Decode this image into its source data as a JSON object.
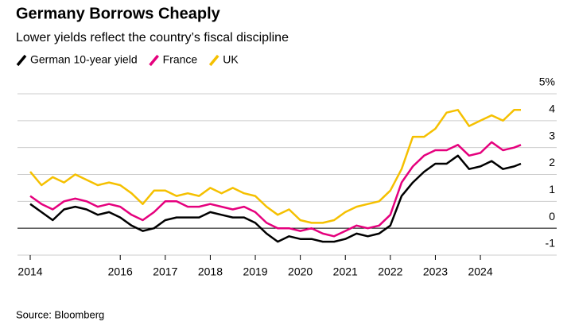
{
  "chart_data": {
    "type": "line",
    "title": "Germany Borrows Cheaply",
    "subtitle": "Lower yields reflect the country’s fiscal discipline",
    "source": "Source: Bloomberg",
    "x": [
      2014,
      2014.25,
      2014.5,
      2014.75,
      2015,
      2015.25,
      2015.5,
      2015.75,
      2016,
      2016.25,
      2016.5,
      2016.75,
      2017,
      2017.25,
      2017.5,
      2017.75,
      2018,
      2018.25,
      2018.5,
      2018.75,
      2019,
      2019.25,
      2019.5,
      2019.75,
      2020,
      2020.25,
      2020.5,
      2020.75,
      2021,
      2021.25,
      2021.5,
      2021.75,
      2022,
      2022.25,
      2022.5,
      2022.75,
      2023,
      2023.25,
      2023.5,
      2023.75,
      2024,
      2024.25,
      2024.5,
      2024.75,
      2024.9
    ],
    "series": [
      {
        "name": "German 10-year yield",
        "color": "#000000",
        "values": [
          0.9,
          0.6,
          0.3,
          0.7,
          0.8,
          0.7,
          0.5,
          0.6,
          0.4,
          0.1,
          -0.1,
          0.0,
          0.3,
          0.4,
          0.4,
          0.4,
          0.6,
          0.5,
          0.4,
          0.4,
          0.2,
          -0.2,
          -0.5,
          -0.3,
          -0.4,
          -0.4,
          -0.5,
          -0.5,
          -0.4,
          -0.2,
          -0.3,
          -0.2,
          0.1,
          1.2,
          1.7,
          2.1,
          2.4,
          2.4,
          2.7,
          2.2,
          2.3,
          2.5,
          2.2,
          2.3,
          2.4
        ]
      },
      {
        "name": "France",
        "color": "#e5007d",
        "values": [
          1.2,
          0.9,
          0.7,
          1.0,
          1.1,
          1.0,
          0.8,
          0.9,
          0.8,
          0.5,
          0.3,
          0.6,
          1.0,
          1.0,
          0.8,
          0.8,
          0.9,
          0.8,
          0.7,
          0.8,
          0.6,
          0.2,
          0.0,
          0.0,
          -0.1,
          0.0,
          -0.2,
          -0.3,
          -0.1,
          0.1,
          0.0,
          0.1,
          0.5,
          1.7,
          2.3,
          2.7,
          2.9,
          2.9,
          3.1,
          2.7,
          2.8,
          3.2,
          2.9,
          3.0,
          3.1
        ]
      },
      {
        "name": "UK",
        "color": "#f5c000",
        "values": [
          2.1,
          1.6,
          1.9,
          1.7,
          2.0,
          1.8,
          1.6,
          1.7,
          1.6,
          1.3,
          0.9,
          1.4,
          1.4,
          1.2,
          1.3,
          1.2,
          1.5,
          1.3,
          1.5,
          1.3,
          1.2,
          0.8,
          0.5,
          0.7,
          0.3,
          0.2,
          0.2,
          0.3,
          0.6,
          0.8,
          0.9,
          1.0,
          1.4,
          2.2,
          3.4,
          3.4,
          3.7,
          4.3,
          4.4,
          3.8,
          4.0,
          4.2,
          4.0,
          4.4,
          4.4
        ]
      }
    ],
    "xlim": [
      2014,
      2024.9
    ],
    "xticks": [
      2014,
      2016,
      2017,
      2018,
      2019,
      2020,
      2021,
      2022,
      2023,
      2024
    ],
    "ylim": [
      -1,
      5
    ],
    "yticks": [
      -1,
      0,
      1,
      2,
      3,
      4,
      {
        "value": 5,
        "label": "5%"
      }
    ],
    "grid": true
  }
}
